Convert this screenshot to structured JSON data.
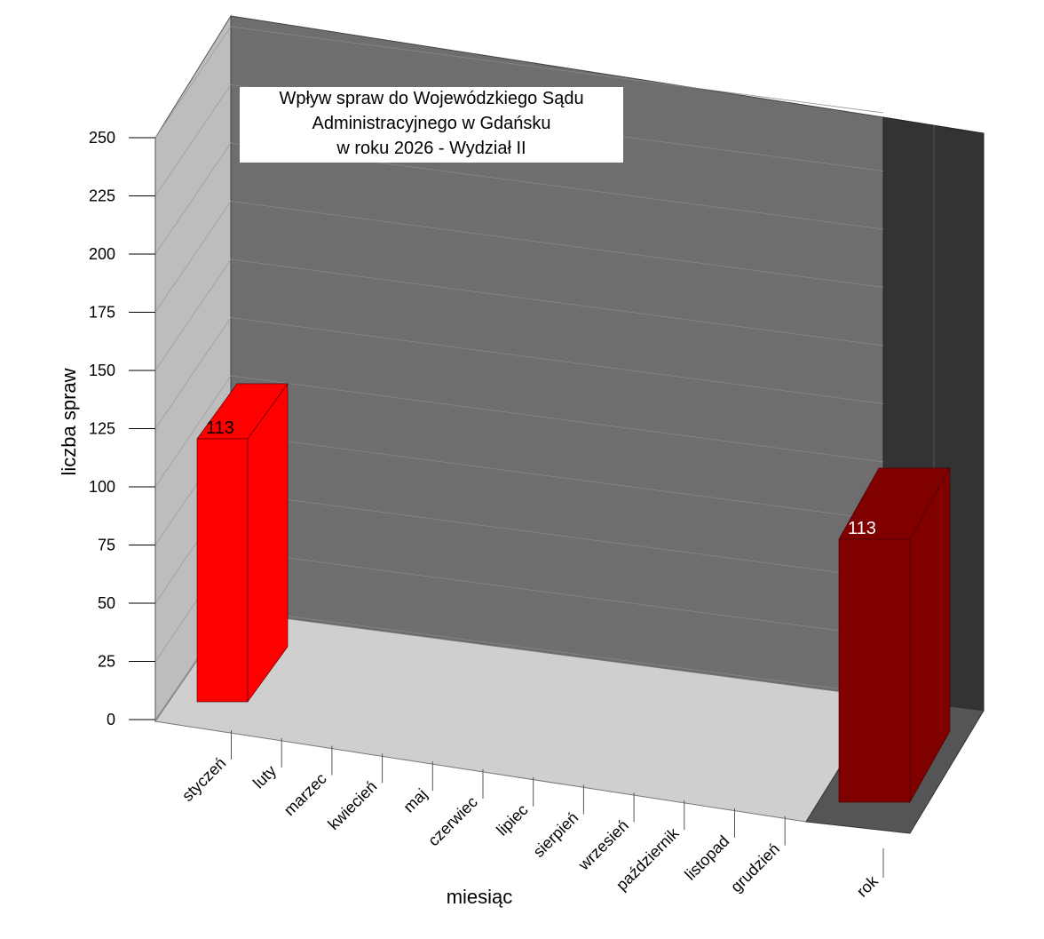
{
  "chart_data": {
    "type": "bar3d",
    "title": [
      "Wpływ spraw do Wojewódzkiego Sądu",
      "Administracyjnego w Gdańsku",
      "w roku 2026 - Wydział II"
    ],
    "x_label": "miesiąc",
    "y_label": "liczba spraw",
    "categories": [
      "styczeń",
      "luty",
      "marzec",
      "kwiecień",
      "maj",
      "czerwiec",
      "lipiec",
      "sierpień",
      "wrzesień",
      "październik",
      "listopad",
      "grudzień",
      "rok"
    ],
    "values": [
      113,
      null,
      null,
      null,
      null,
      null,
      null,
      null,
      null,
      null,
      null,
      null,
      113
    ],
    "color": "#ff0000",
    "total_color": "#800000",
    "ylim": [
      0,
      250
    ],
    "yticks": [
      0,
      25,
      50,
      75,
      100,
      125,
      150,
      175,
      200,
      225,
      250
    ],
    "grid": true
  }
}
